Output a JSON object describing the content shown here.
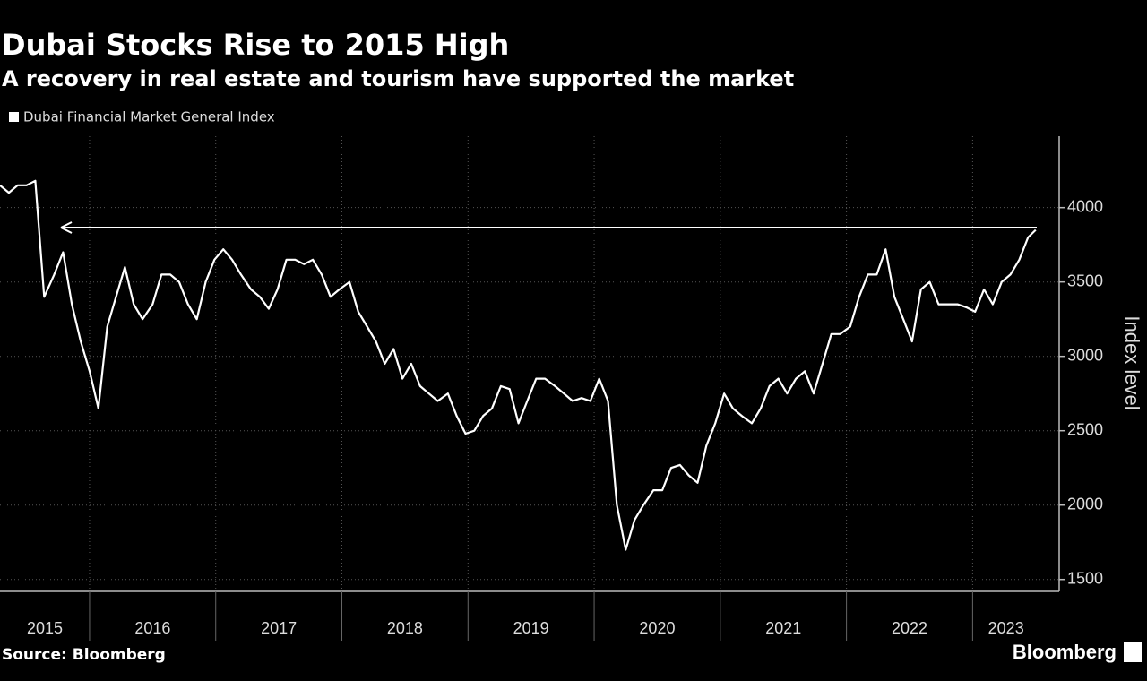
{
  "chart_data": {
    "type": "line",
    "title": "Dubai Stocks Rise to 2015 High",
    "subtitle": "A recovery in real estate and tourism have supported the market",
    "y_label": "Index level",
    "source": "Source: Bloomberg",
    "brand": "Bloomberg",
    "x": [
      2015.29,
      2015.36,
      2015.43,
      2015.5,
      2015.57,
      2015.64,
      2015.72,
      2015.79,
      2015.86,
      2015.93,
      2016.0,
      2016.07,
      2016.14,
      2016.21,
      2016.28,
      2016.35,
      2016.42,
      2016.5,
      2016.57,
      2016.64,
      2016.71,
      2016.78,
      2016.85,
      2016.92,
      2016.99,
      2017.06,
      2017.13,
      2017.2,
      2017.28,
      2017.35,
      2017.42,
      2017.49,
      2017.56,
      2017.63,
      2017.7,
      2017.77,
      2017.84,
      2017.91,
      2017.98,
      2018.06,
      2018.13,
      2018.2,
      2018.27,
      2018.34,
      2018.41,
      2018.48,
      2018.55,
      2018.62,
      2018.69,
      2018.76,
      2018.84,
      2018.91,
      2018.98,
      2019.05,
      2019.12,
      2019.19,
      2019.26,
      2019.33,
      2019.4,
      2019.47,
      2019.54,
      2019.61,
      2019.69,
      2019.76,
      2019.83,
      2019.9,
      2019.97,
      2020.04,
      2020.11,
      2020.18,
      2020.25,
      2020.32,
      2020.39,
      2020.47,
      2020.54,
      2020.61,
      2020.68,
      2020.75,
      2020.82,
      2020.89,
      2020.96,
      2021.03,
      2021.1,
      2021.17,
      2021.25,
      2021.32,
      2021.39,
      2021.46,
      2021.53,
      2021.6,
      2021.67,
      2021.74,
      2021.81,
      2021.88,
      2021.95,
      2022.03,
      2022.1,
      2022.17,
      2022.24,
      2022.31,
      2022.38,
      2022.45,
      2022.52,
      2022.59,
      2022.66,
      2022.73,
      2022.8,
      2022.88,
      2022.95,
      2023.02,
      2023.09,
      2023.16,
      2023.23,
      2023.3,
      2023.37,
      2023.44,
      2023.5
    ],
    "series": [
      {
        "name": "Dubai Financial Market General Index",
        "color": "#ffffff",
        "values": [
          4150,
          4100,
          4150,
          4150,
          4180,
          3400,
          3550,
          3700,
          3350,
          3100,
          2900,
          2650,
          3200,
          3400,
          3600,
          3350,
          3250,
          3350,
          3550,
          3550,
          3500,
          3350,
          3250,
          3500,
          3650,
          3720,
          3650,
          3550,
          3450,
          3400,
          3320,
          3450,
          3650,
          3650,
          3620,
          3650,
          3550,
          3400,
          3450,
          3500,
          3300,
          3200,
          3100,
          2950,
          3050,
          2850,
          2950,
          2800,
          2750,
          2700,
          2750,
          2600,
          2480,
          2500,
          2600,
          2650,
          2800,
          2780,
          2550,
          2700,
          2850,
          2850,
          2800,
          2750,
          2700,
          2720,
          2700,
          2850,
          2700,
          2000,
          1700,
          1900,
          2000,
          2100,
          2100,
          2250,
          2270,
          2200,
          2150,
          2400,
          2550,
          2750,
          2650,
          2600,
          2550,
          2650,
          2800,
          2850,
          2750,
          2850,
          2900,
          2750,
          2950,
          3150,
          3150,
          3200,
          3400,
          3550,
          3550,
          3720,
          3400,
          3250,
          3100,
          3450,
          3500,
          3350,
          3350,
          3350,
          3330,
          3300,
          3450,
          3350,
          3500,
          3550,
          3650,
          3800,
          3850
        ]
      }
    ],
    "xlim": [
      2015.29,
      2023.53
    ],
    "xticks": [
      2015,
      2016,
      2017,
      2018,
      2019,
      2020,
      2021,
      2022,
      2023
    ],
    "ylim": [
      1420,
      4480
    ],
    "yticks": [
      1500,
      2000,
      2500,
      3000,
      3500,
      4000
    ],
    "grid": true,
    "legend": "top-left"
  }
}
